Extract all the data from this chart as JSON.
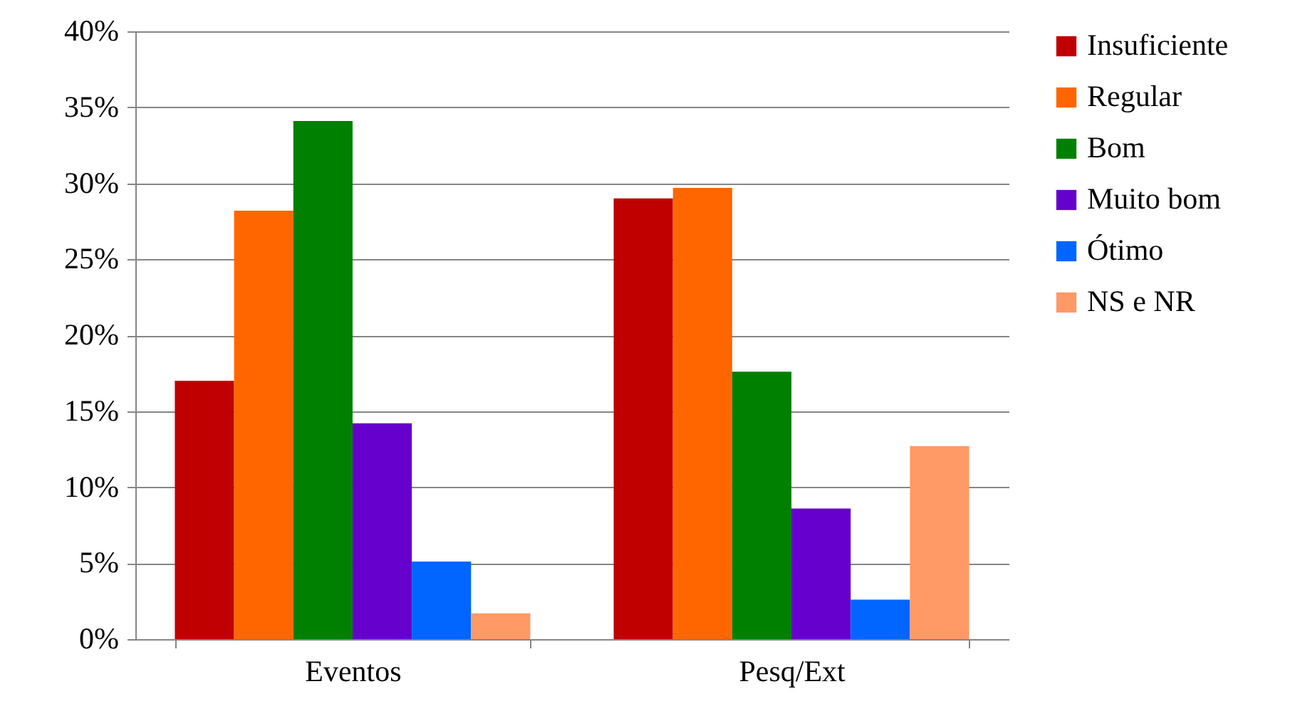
{
  "chart_data": {
    "type": "bar",
    "categories": [
      "Eventos",
      "Pesq/Ext"
    ],
    "series": [
      {
        "name": "Insuficiente",
        "color": "#c00000",
        "values": [
          17,
          29
        ]
      },
      {
        "name": "Regular",
        "color": "#ff6600",
        "values": [
          28.2,
          29.7
        ]
      },
      {
        "name": "Bom",
        "color": "#008000",
        "values": [
          34.1,
          17.6
        ]
      },
      {
        "name": "Muito bom",
        "color": "#6600cc",
        "values": [
          14.2,
          8.6
        ]
      },
      {
        "name": "Ótimo",
        "color": "#0066ff",
        "values": [
          5.1,
          2.6
        ]
      },
      {
        "name": "NS e NR",
        "color": "#ff9966",
        "values": [
          1.7,
          12.7
        ]
      }
    ],
    "ylim": [
      0,
      40
    ],
    "yticks": [
      {
        "value": 0,
        "label": "0%"
      },
      {
        "value": 5,
        "label": "5%"
      },
      {
        "value": 10,
        "label": "10%"
      },
      {
        "value": 15,
        "label": "15%"
      },
      {
        "value": 20,
        "label": "20%"
      },
      {
        "value": 25,
        "label": "25%"
      },
      {
        "value": 30,
        "label": "30%"
      },
      {
        "value": 35,
        "label": "35%"
      },
      {
        "value": 40,
        "label": "40%"
      }
    ],
    "grid": "y",
    "legend": "right"
  }
}
